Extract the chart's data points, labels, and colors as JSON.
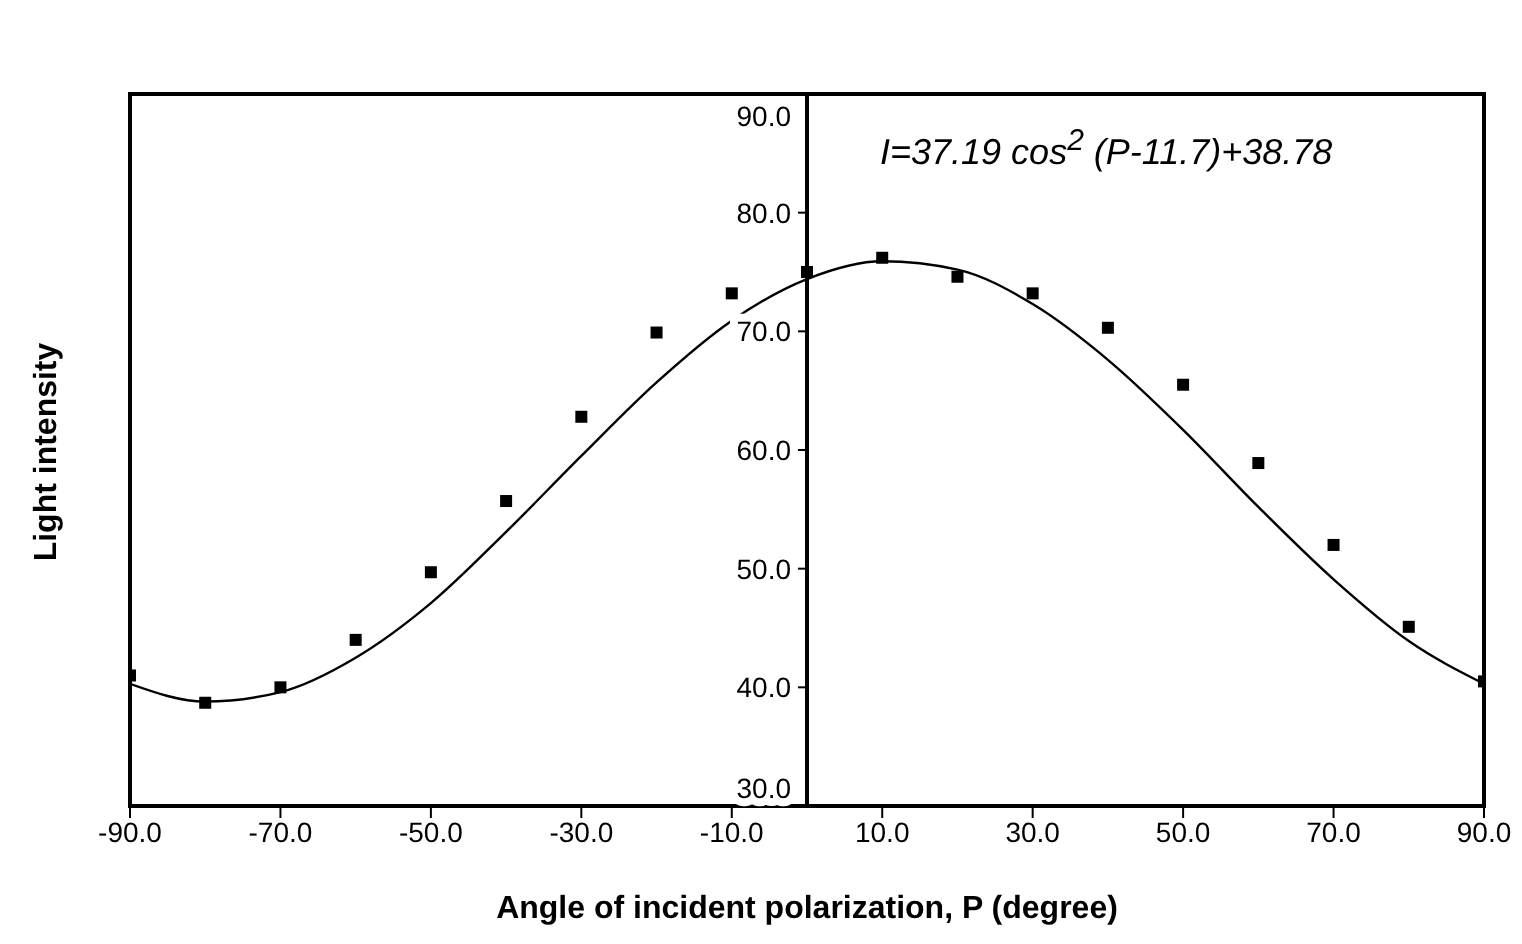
{
  "chart_data": {
    "type": "scatter",
    "xlabel": "Angle of incident polarization, P (degree)",
    "ylabel": "Light intensity",
    "annotations": [
      "I=37.19 cos$^{2}$ (P-11.7)+38.78"
    ],
    "x": [
      -90,
      -80,
      -70,
      -60,
      -50,
      -40,
      -30,
      -20,
      -10,
      0,
      10,
      20,
      30,
      40,
      50,
      60,
      70,
      80,
      90
    ],
    "series": [
      {
        "color": "#000000",
        "marker": "square",
        "values": [
          41.0,
          38.7,
          40.0,
          44.0,
          49.7,
          55.7,
          62.8,
          69.9,
          73.2,
          75.0,
          76.2,
          74.6,
          73.2,
          70.3,
          65.5,
          58.9,
          52.0,
          45.1,
          40.5
        ]
      },
      {
        "type": "line",
        "color": "#000000",
        "marker": "none",
        "line_style": "solid",
        "values": [
          40.3,
          38.8,
          39.6,
          42.5,
          47.1,
          53.1,
          59.5,
          65.7,
          70.9,
          74.4,
          75.9,
          75.2,
          72.3,
          67.6,
          61.7,
          55.2,
          49.1,
          43.9,
          40.3
        ]
      }
    ],
    "xlim": [
      -90,
      90
    ],
    "xticks": [
      {
        "value": -90,
        "label": "-90.0"
      },
      {
        "value": -70,
        "label": "-70.0"
      },
      {
        "value": -50,
        "label": "-50.0"
      },
      {
        "value": -30,
        "label": "-30.0"
      },
      {
        "value": -10,
        "label": "-10.0"
      },
      {
        "value": 10,
        "label": "10.0"
      },
      {
        "value": 30,
        "label": "30.0"
      },
      {
        "value": 50,
        "label": "50.0"
      },
      {
        "value": 70,
        "label": "70.0"
      },
      {
        "value": 90,
        "label": "90.0"
      }
    ],
    "ylim": [
      30,
      90
    ],
    "yticks": [
      {
        "value": 30,
        "label": "30.0"
      },
      {
        "value": 40,
        "label": "40.0"
      },
      {
        "value": 50,
        "label": "50.0"
      },
      {
        "value": 60,
        "label": "60.0"
      },
      {
        "value": 70,
        "label": "70.0"
      },
      {
        "value": 80,
        "label": "80.0"
      },
      {
        "value": 90,
        "label": "90.0"
      }
    ]
  }
}
